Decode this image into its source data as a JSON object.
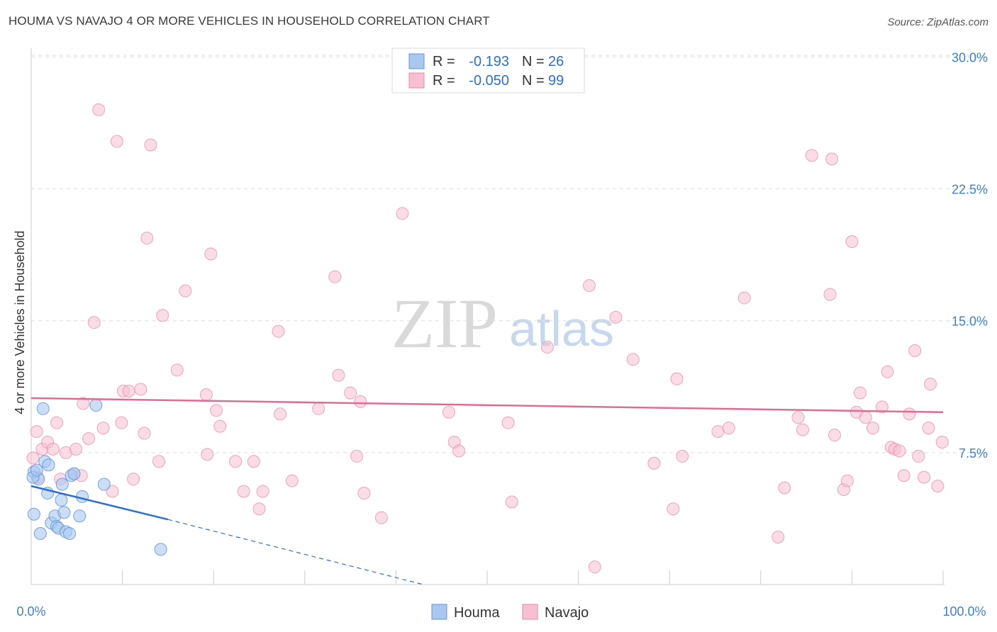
{
  "title": "HOUMA VS NAVAJO 4 OR MORE VEHICLES IN HOUSEHOLD CORRELATION CHART",
  "source": "Source: ZipAtlas.com",
  "watermark": {
    "zip": "ZIP",
    "atlas": "atlas"
  },
  "colors": {
    "houma_fill": "#a9c8f0",
    "houma_stroke": "#5f95dc",
    "houma_line": "#2c6fd1",
    "navajo_fill": "#f6c0d1",
    "navajo_stroke": "#e98aa8",
    "navajo_line": "#e06b93",
    "tick": "#3f7fd0",
    "grid": "#dddddd"
  },
  "stats": {
    "r_label": "R =",
    "n_label": "N =",
    "houma": {
      "r": "-0.193",
      "n": "26"
    },
    "navajo": {
      "r": "-0.050",
      "n": "99"
    }
  },
  "chart_data": {
    "type": "scatter",
    "title": "HOUMA VS NAVAJO 4 OR MORE VEHICLES IN HOUSEHOLD CORRELATION CHART",
    "xlabel": "",
    "ylabel": "4 or more Vehicles in Household",
    "xlim": [
      0,
      100
    ],
    "ylim": [
      0,
      30.5
    ],
    "x_tick_labels": [
      "0.0%",
      "100.0%"
    ],
    "y_ticks": [
      7.5,
      15.0,
      22.5,
      30.0
    ],
    "y_tick_labels": [
      "7.5%",
      "15.0%",
      "22.5%",
      "30.0%"
    ],
    "grid": "horizontal dashed",
    "legend_position": "bottom-center",
    "series": [
      {
        "name": "Houma",
        "points": [
          [
            0.3,
            4.0
          ],
          [
            0.3,
            6.4
          ],
          [
            0.8,
            6.0
          ],
          [
            1.0,
            2.9
          ],
          [
            1.3,
            10.0
          ],
          [
            1.5,
            7.0
          ],
          [
            1.8,
            5.2
          ],
          [
            1.9,
            6.8
          ],
          [
            2.2,
            3.5
          ],
          [
            2.6,
            3.9
          ],
          [
            2.8,
            3.3
          ],
          [
            3.0,
            3.2
          ],
          [
            3.3,
            4.8
          ],
          [
            3.4,
            5.7
          ],
          [
            3.6,
            4.1
          ],
          [
            3.8,
            3.0
          ],
          [
            4.2,
            2.9
          ],
          [
            4.4,
            6.2
          ],
          [
            4.7,
            6.3
          ],
          [
            5.3,
            3.9
          ],
          [
            5.6,
            5.0
          ],
          [
            7.1,
            10.2
          ],
          [
            8.0,
            5.7
          ],
          [
            14.2,
            2.0
          ],
          [
            0.2,
            6.1
          ],
          [
            0.6,
            6.5
          ]
        ],
        "trend": {
          "x0": 0,
          "y0": 5.6,
          "x1": 15,
          "y1": 3.7,
          "dash_to_x": 43,
          "dash_to_y": 0
        }
      },
      {
        "name": "Navajo",
        "points": [
          [
            0.2,
            7.2
          ],
          [
            0.6,
            8.7
          ],
          [
            0.7,
            6.1
          ],
          [
            1.2,
            7.7
          ],
          [
            1.8,
            8.1
          ],
          [
            2.4,
            7.7
          ],
          [
            2.8,
            9.2
          ],
          [
            3.2,
            6.0
          ],
          [
            3.8,
            7.5
          ],
          [
            4.7,
            6.3
          ],
          [
            4.9,
            7.7
          ],
          [
            5.5,
            6.2
          ],
          [
            5.7,
            10.3
          ],
          [
            6.3,
            8.3
          ],
          [
            6.9,
            14.9
          ],
          [
            7.4,
            27.0
          ],
          [
            7.9,
            8.9
          ],
          [
            8.9,
            5.3
          ],
          [
            9.4,
            25.2
          ],
          [
            9.9,
            9.2
          ],
          [
            10.1,
            11.0
          ],
          [
            10.7,
            11.0
          ],
          [
            11.2,
            6.0
          ],
          [
            12.0,
            11.1
          ],
          [
            12.4,
            8.6
          ],
          [
            12.7,
            19.7
          ],
          [
            13.1,
            25.0
          ],
          [
            14.0,
            7.0
          ],
          [
            14.4,
            15.3
          ],
          [
            16.0,
            12.2
          ],
          [
            16.9,
            16.7
          ],
          [
            19.3,
            7.4
          ],
          [
            19.2,
            10.8
          ],
          [
            19.7,
            18.8
          ],
          [
            20.3,
            9.9
          ],
          [
            20.7,
            9.0
          ],
          [
            22.4,
            7.0
          ],
          [
            23.3,
            5.3
          ],
          [
            24.4,
            7.0
          ],
          [
            25.0,
            4.3
          ],
          [
            25.4,
            5.3
          ],
          [
            27.1,
            14.4
          ],
          [
            27.3,
            9.7
          ],
          [
            28.6,
            5.9
          ],
          [
            31.5,
            10.0
          ],
          [
            33.3,
            17.5
          ],
          [
            33.7,
            11.9
          ],
          [
            35.0,
            10.9
          ],
          [
            35.7,
            7.3
          ],
          [
            36.1,
            10.4
          ],
          [
            36.5,
            5.2
          ],
          [
            38.4,
            3.8
          ],
          [
            40.7,
            21.1
          ],
          [
            45.8,
            9.8
          ],
          [
            46.4,
            8.1
          ],
          [
            46.9,
            7.6
          ],
          [
            52.3,
            9.2
          ],
          [
            52.7,
            4.7
          ],
          [
            56.6,
            13.5
          ],
          [
            61.2,
            17.0
          ],
          [
            61.8,
            1.0
          ],
          [
            64.1,
            15.2
          ],
          [
            66.0,
            12.8
          ],
          [
            68.3,
            6.9
          ],
          [
            70.4,
            4.3
          ],
          [
            70.8,
            11.7
          ],
          [
            71.4,
            7.3
          ],
          [
            75.3,
            8.7
          ],
          [
            76.5,
            8.9
          ],
          [
            78.2,
            16.3
          ],
          [
            81.9,
            2.7
          ],
          [
            82.6,
            5.5
          ],
          [
            84.1,
            9.5
          ],
          [
            84.6,
            8.8
          ],
          [
            85.6,
            24.4
          ],
          [
            87.8,
            24.2
          ],
          [
            87.6,
            16.5
          ],
          [
            88.1,
            8.5
          ],
          [
            89.1,
            5.4
          ],
          [
            89.5,
            5.9
          ],
          [
            90.0,
            19.5
          ],
          [
            90.5,
            9.8
          ],
          [
            90.9,
            10.9
          ],
          [
            91.5,
            9.5
          ],
          [
            92.3,
            8.9
          ],
          [
            93.3,
            10.1
          ],
          [
            93.9,
            12.1
          ],
          [
            94.3,
            7.8
          ],
          [
            94.7,
            7.7
          ],
          [
            95.2,
            7.6
          ],
          [
            95.7,
            6.2
          ],
          [
            96.3,
            9.7
          ],
          [
            96.9,
            13.3
          ],
          [
            97.3,
            7.3
          ],
          [
            97.9,
            6.1
          ],
          [
            98.4,
            8.9
          ],
          [
            98.6,
            11.4
          ],
          [
            99.4,
            5.6
          ],
          [
            99.9,
            8.1
          ]
        ],
        "trend": {
          "x0": 0,
          "y0": 10.6,
          "x1": 100,
          "y1": 9.8
        }
      }
    ]
  },
  "legend": {
    "houma": "Houma",
    "navajo": "Navajo"
  }
}
